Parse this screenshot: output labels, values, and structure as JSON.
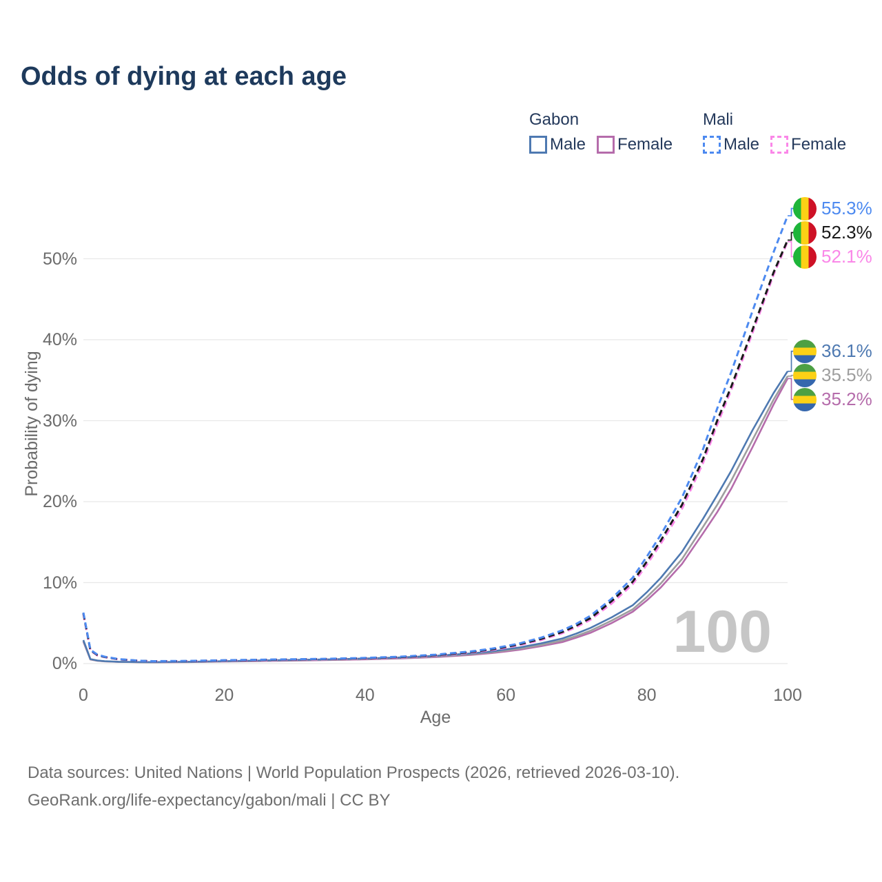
{
  "title": "Odds of dying at each age",
  "legend": {
    "groups": [
      {
        "country": "Gabon",
        "line_style": "solid",
        "underline_color": "#a9a9a9",
        "items": [
          {
            "label": "Male",
            "series": "Gabon Male",
            "color": "#4e79b1"
          },
          {
            "label": "Female",
            "series": "Gabon Female",
            "color": "#b56cab"
          }
        ]
      },
      {
        "country": "Mali",
        "line_style": "dashed",
        "underline_color": "#1a1a1a",
        "items": [
          {
            "label": "Male",
            "series": "Mali Male",
            "color": "#4d8af0"
          },
          {
            "label": "Female",
            "series": "Mali Female",
            "color": "#fa87e8"
          }
        ]
      }
    ]
  },
  "chart_data": {
    "type": "line",
    "title": "Odds of dying at each age",
    "xlabel": "Age",
    "ylabel": "Probability of dying",
    "xlim": [
      0,
      100
    ],
    "ylim": [
      0,
      57.5
    ],
    "grid": "horizontal-only",
    "legend_position": "top-right",
    "x_ticks": [
      0,
      20,
      40,
      60,
      80,
      100
    ],
    "y_ticks": [
      {
        "value": 0,
        "label": "0%"
      },
      {
        "value": 10,
        "label": "10%"
      },
      {
        "value": 20,
        "label": "20%"
      },
      {
        "value": 30,
        "label": "30%"
      },
      {
        "value": 40,
        "label": "40%"
      },
      {
        "value": 50,
        "label": "50%"
      }
    ],
    "ages": [
      0,
      1,
      2,
      3,
      5,
      8,
      10,
      15,
      20,
      25,
      30,
      35,
      40,
      45,
      50,
      55,
      58,
      60,
      62,
      65,
      68,
      70,
      72,
      75,
      78,
      80,
      82,
      85,
      88,
      90,
      92,
      95,
      98,
      100
    ],
    "series": [
      {
        "name": "Mali Male",
        "country": "Mali",
        "sex": "Male",
        "style": "dashed",
        "color": "#4d8af0",
        "flag": "mali",
        "end_label": "55.3%",
        "values": [
          6.3,
          1.7,
          1.1,
          0.85,
          0.55,
          0.35,
          0.3,
          0.33,
          0.42,
          0.48,
          0.54,
          0.6,
          0.7,
          0.85,
          1.1,
          1.5,
          1.85,
          2.15,
          2.5,
          3.2,
          4.1,
          4.9,
          5.9,
          8.0,
          10.6,
          13.2,
          15.9,
          20.5,
          26.5,
          31.5,
          36.0,
          43.5,
          50.8,
          55.3
        ]
      },
      {
        "name": "Mali Both sexes",
        "country": "Mali",
        "sex": "Both",
        "style": "dashed",
        "color": "#1a1a1a",
        "flag": "mali",
        "end_label": "52.3%",
        "values": [
          6.2,
          1.65,
          1.05,
          0.82,
          0.53,
          0.34,
          0.29,
          0.31,
          0.39,
          0.45,
          0.51,
          0.57,
          0.66,
          0.8,
          1.03,
          1.42,
          1.75,
          2.05,
          2.4,
          3.05,
          3.9,
          4.7,
          5.6,
          7.7,
          10.1,
          12.6,
          15.2,
          19.6,
          25.3,
          30.0,
          34.2,
          41.2,
          48.3,
          52.3
        ]
      },
      {
        "name": "Mali Female",
        "country": "Mali",
        "sex": "Female",
        "style": "dashed",
        "color": "#fa87e8",
        "flag": "mali",
        "end_label": "52.1%",
        "values": [
          6.1,
          1.6,
          1.0,
          0.8,
          0.51,
          0.33,
          0.28,
          0.3,
          0.36,
          0.42,
          0.48,
          0.54,
          0.62,
          0.75,
          0.97,
          1.35,
          1.67,
          1.95,
          2.3,
          2.9,
          3.75,
          4.5,
          5.4,
          7.4,
          9.8,
          12.2,
          14.8,
          19.1,
          24.8,
          29.5,
          33.8,
          40.8,
          48.0,
          52.1
        ]
      },
      {
        "name": "Gabon Male",
        "country": "Gabon",
        "sex": "Male",
        "style": "solid",
        "color": "#4e79b1",
        "flag": "gabon",
        "end_label": "36.1%",
        "values": [
          2.9,
          0.55,
          0.38,
          0.3,
          0.22,
          0.19,
          0.18,
          0.22,
          0.3,
          0.38,
          0.45,
          0.52,
          0.62,
          0.75,
          0.95,
          1.25,
          1.5,
          1.75,
          2.0,
          2.5,
          3.1,
          3.7,
          4.4,
          5.7,
          7.2,
          8.8,
          10.6,
          13.8,
          17.9,
          20.8,
          23.8,
          28.8,
          33.4,
          36.1
        ]
      },
      {
        "name": "Gabon Both sexes",
        "country": "Gabon",
        "sex": "Both",
        "style": "solid",
        "color": "#9e9e9e",
        "flag": "gabon",
        "end_label": "35.5%",
        "values": [
          2.8,
          0.52,
          0.36,
          0.28,
          0.21,
          0.18,
          0.17,
          0.2,
          0.27,
          0.34,
          0.41,
          0.48,
          0.57,
          0.69,
          0.88,
          1.16,
          1.4,
          1.62,
          1.85,
          2.3,
          2.85,
          3.4,
          4.05,
          5.3,
          6.7,
          8.2,
          9.9,
          12.9,
          16.9,
          19.6,
          22.6,
          27.6,
          32.6,
          35.5
        ]
      },
      {
        "name": "Gabon Female",
        "country": "Gabon",
        "sex": "Female",
        "style": "solid",
        "color": "#b56cab",
        "flag": "gabon",
        "end_label": "35.2%",
        "values": [
          2.7,
          0.5,
          0.34,
          0.27,
          0.2,
          0.17,
          0.16,
          0.19,
          0.25,
          0.31,
          0.37,
          0.44,
          0.52,
          0.63,
          0.8,
          1.07,
          1.3,
          1.5,
          1.72,
          2.15,
          2.65,
          3.2,
          3.8,
          5.0,
          6.4,
          7.8,
          9.4,
          12.3,
          16.1,
          18.7,
          21.6,
          26.7,
          32.0,
          35.2
        ]
      }
    ],
    "flag_colors": {
      "mali": {
        "orientation": "vertical",
        "stripes": [
          "#1eb53a",
          "#fcd116",
          "#ce1126"
        ]
      },
      "gabon": {
        "orientation": "horizontal",
        "stripes": [
          "#4da043",
          "#fcd116",
          "#3567ad"
        ]
      }
    },
    "watermark": "100"
  },
  "footer": {
    "line1": "Data sources: United Nations | World Population Prospects (2026, retrieved 2026-03-10).",
    "line2": "GeoRank.org/life-expectancy/gabon/mali | CC BY"
  },
  "colors": {
    "title_text": "#1e3a5c",
    "axis_text": "#6b6b6b",
    "gridline": "#e8e8e8",
    "watermark": "#c6c6c6",
    "background": "#ffffff"
  }
}
